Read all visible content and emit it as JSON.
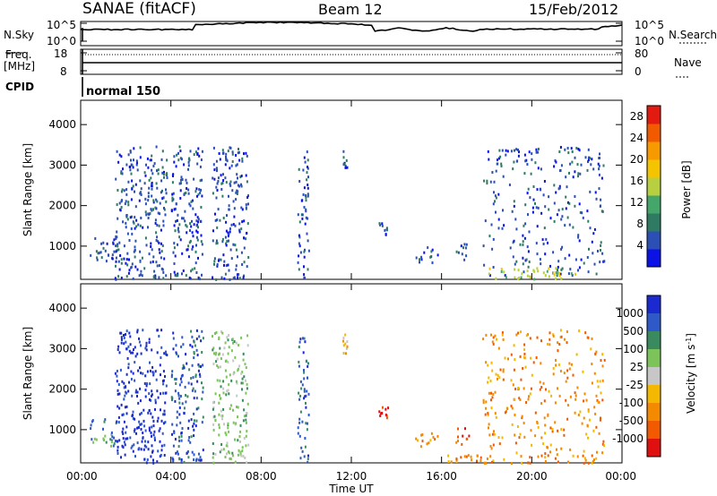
{
  "header": {
    "station": "SANAE (fitACF)",
    "beam": "Beam 12",
    "date": "15/Feb/2012"
  },
  "status_panels": {
    "nsky_label": "N.Sky",
    "nsky_ticks": [
      "10^5",
      "10^0"
    ],
    "nsearch_label": "N.Search",
    "nsearch_ticks": [
      "10^5",
      "10^0"
    ],
    "freq_label_1": "Freq.",
    "freq_label_2": "[MHz]",
    "freq_ticks": [
      "18",
      "8"
    ],
    "nave_label": "Nave",
    "nave_ticks": [
      "80",
      "0"
    ],
    "cpid_label": "CPID",
    "cpid_value": "normal 150"
  },
  "colors": {
    "power": [
      "#0a12e6",
      "#2b4fb5",
      "#2f7a62",
      "#45a66a",
      "#b8d040",
      "#f4c400",
      "#f79a00",
      "#f25a00",
      "#e21a10"
    ],
    "velocity": [
      "#1a2ad0",
      "#2f58c8",
      "#3a8a60",
      "#7cc45a",
      "#c7c7c7",
      "#f4b800",
      "#f48a00",
      "#f25a00",
      "#e01010"
    ],
    "status_line": "#000000"
  },
  "chart_data": [
    {
      "type": "heatmap",
      "name": "Power",
      "ylabel": "Slant Range [km]",
      "yticks": [
        "1000",
        "2000",
        "3000",
        "4000"
      ],
      "ylim": [
        180,
        4600
      ],
      "xlim": [
        0,
        24
      ],
      "xticks": [
        0,
        4,
        8,
        12,
        16,
        20,
        24
      ],
      "colorbar_label": "Power [dB]",
      "colorbar_ticks": [
        "4",
        "8",
        "12",
        "16",
        "20",
        "24",
        "28"
      ],
      "colorbar_range": [
        0,
        30
      ],
      "grid": false,
      "series": [
        {
          "name": "scatter_regions",
          "values": [
            {
              "t": [
                0.4,
                1.6
              ],
              "r": [
                600,
                1300
              ],
              "c": 1
            },
            {
              "t": [
                1.5,
                3.8
              ],
              "r": [
                200,
                3500
              ],
              "c": 1
            },
            {
              "t": [
                4.0,
                5.4
              ],
              "r": [
                200,
                3500
              ],
              "c": 1
            },
            {
              "t": [
                5.8,
                7.4
              ],
              "r": [
                200,
                3500
              ],
              "c": 1
            },
            {
              "t": [
                9.6,
                10.1
              ],
              "r": [
                200,
                3400
              ],
              "c": 1
            },
            {
              "t": [
                11.6,
                11.8
              ],
              "r": [
                2900,
                3500
              ],
              "c": 1
            },
            {
              "t": [
                13.2,
                13.6
              ],
              "r": [
                1300,
                1600
              ],
              "c": 1
            },
            {
              "t": [
                14.8,
                15.8
              ],
              "r": [
                600,
                1000
              ],
              "c": 1
            },
            {
              "t": [
                16.6,
                17.2
              ],
              "r": [
                650,
                1100
              ],
              "c": 1
            },
            {
              "t": [
                17.8,
                23.2
              ],
              "r": [
                300,
                3500
              ],
              "c": 1
            },
            {
              "t": [
                18.0,
                22.0
              ],
              "r": [
                200,
                500
              ],
              "c": 4
            }
          ]
        }
      ]
    },
    {
      "type": "heatmap",
      "name": "Velocity",
      "ylabel": "Slant Range [km]",
      "yticks": [
        "1000",
        "2000",
        "3000",
        "4000"
      ],
      "ylim": [
        180,
        4600
      ],
      "xlim": [
        0,
        24
      ],
      "xticks": [
        0,
        4,
        8,
        12,
        16,
        20,
        24
      ],
      "xticklabels": [
        "00:00",
        "04:00",
        "08:00",
        "12:00",
        "16:00",
        "20:00",
        "00:00"
      ],
      "xlabel": "Time UT",
      "colorbar_label": "Velocity [m s-1]",
      "colorbar_ticks": [
        "1000",
        "500",
        "100",
        "25",
        "-25",
        "-100",
        "-500",
        "-1000"
      ],
      "grid": false,
      "series": [
        {
          "name": "scatter_regions",
          "values": [
            {
              "t": [
                0.4,
                1.6
              ],
              "r": [
                600,
                1300
              ],
              "c": 2
            },
            {
              "t": [
                1.5,
                3.8
              ],
              "r": [
                200,
                3500
              ],
              "c": 0
            },
            {
              "t": [
                4.0,
                5.4
              ],
              "r": [
                200,
                3500
              ],
              "c": 1
            },
            {
              "t": [
                5.8,
                7.4
              ],
              "r": [
                200,
                3500
              ],
              "c": 3
            },
            {
              "t": [
                9.6,
                10.1
              ],
              "r": [
                200,
                3400
              ],
              "c": 1
            },
            {
              "t": [
                11.6,
                11.8
              ],
              "r": [
                2900,
                3500
              ],
              "c": 5
            },
            {
              "t": [
                13.2,
                13.6
              ],
              "r": [
                1300,
                1600
              ],
              "c": 8
            },
            {
              "t": [
                14.8,
                15.8
              ],
              "r": [
                600,
                1000
              ],
              "c": 6
            },
            {
              "t": [
                16.6,
                17.2
              ],
              "r": [
                650,
                1100
              ],
              "c": 7
            },
            {
              "t": [
                17.8,
                23.2
              ],
              "r": [
                300,
                3500
              ],
              "c": 6
            },
            {
              "t": [
                16.2,
                23.0
              ],
              "r": [
                200,
                400
              ],
              "c": 6
            }
          ]
        }
      ]
    }
  ]
}
